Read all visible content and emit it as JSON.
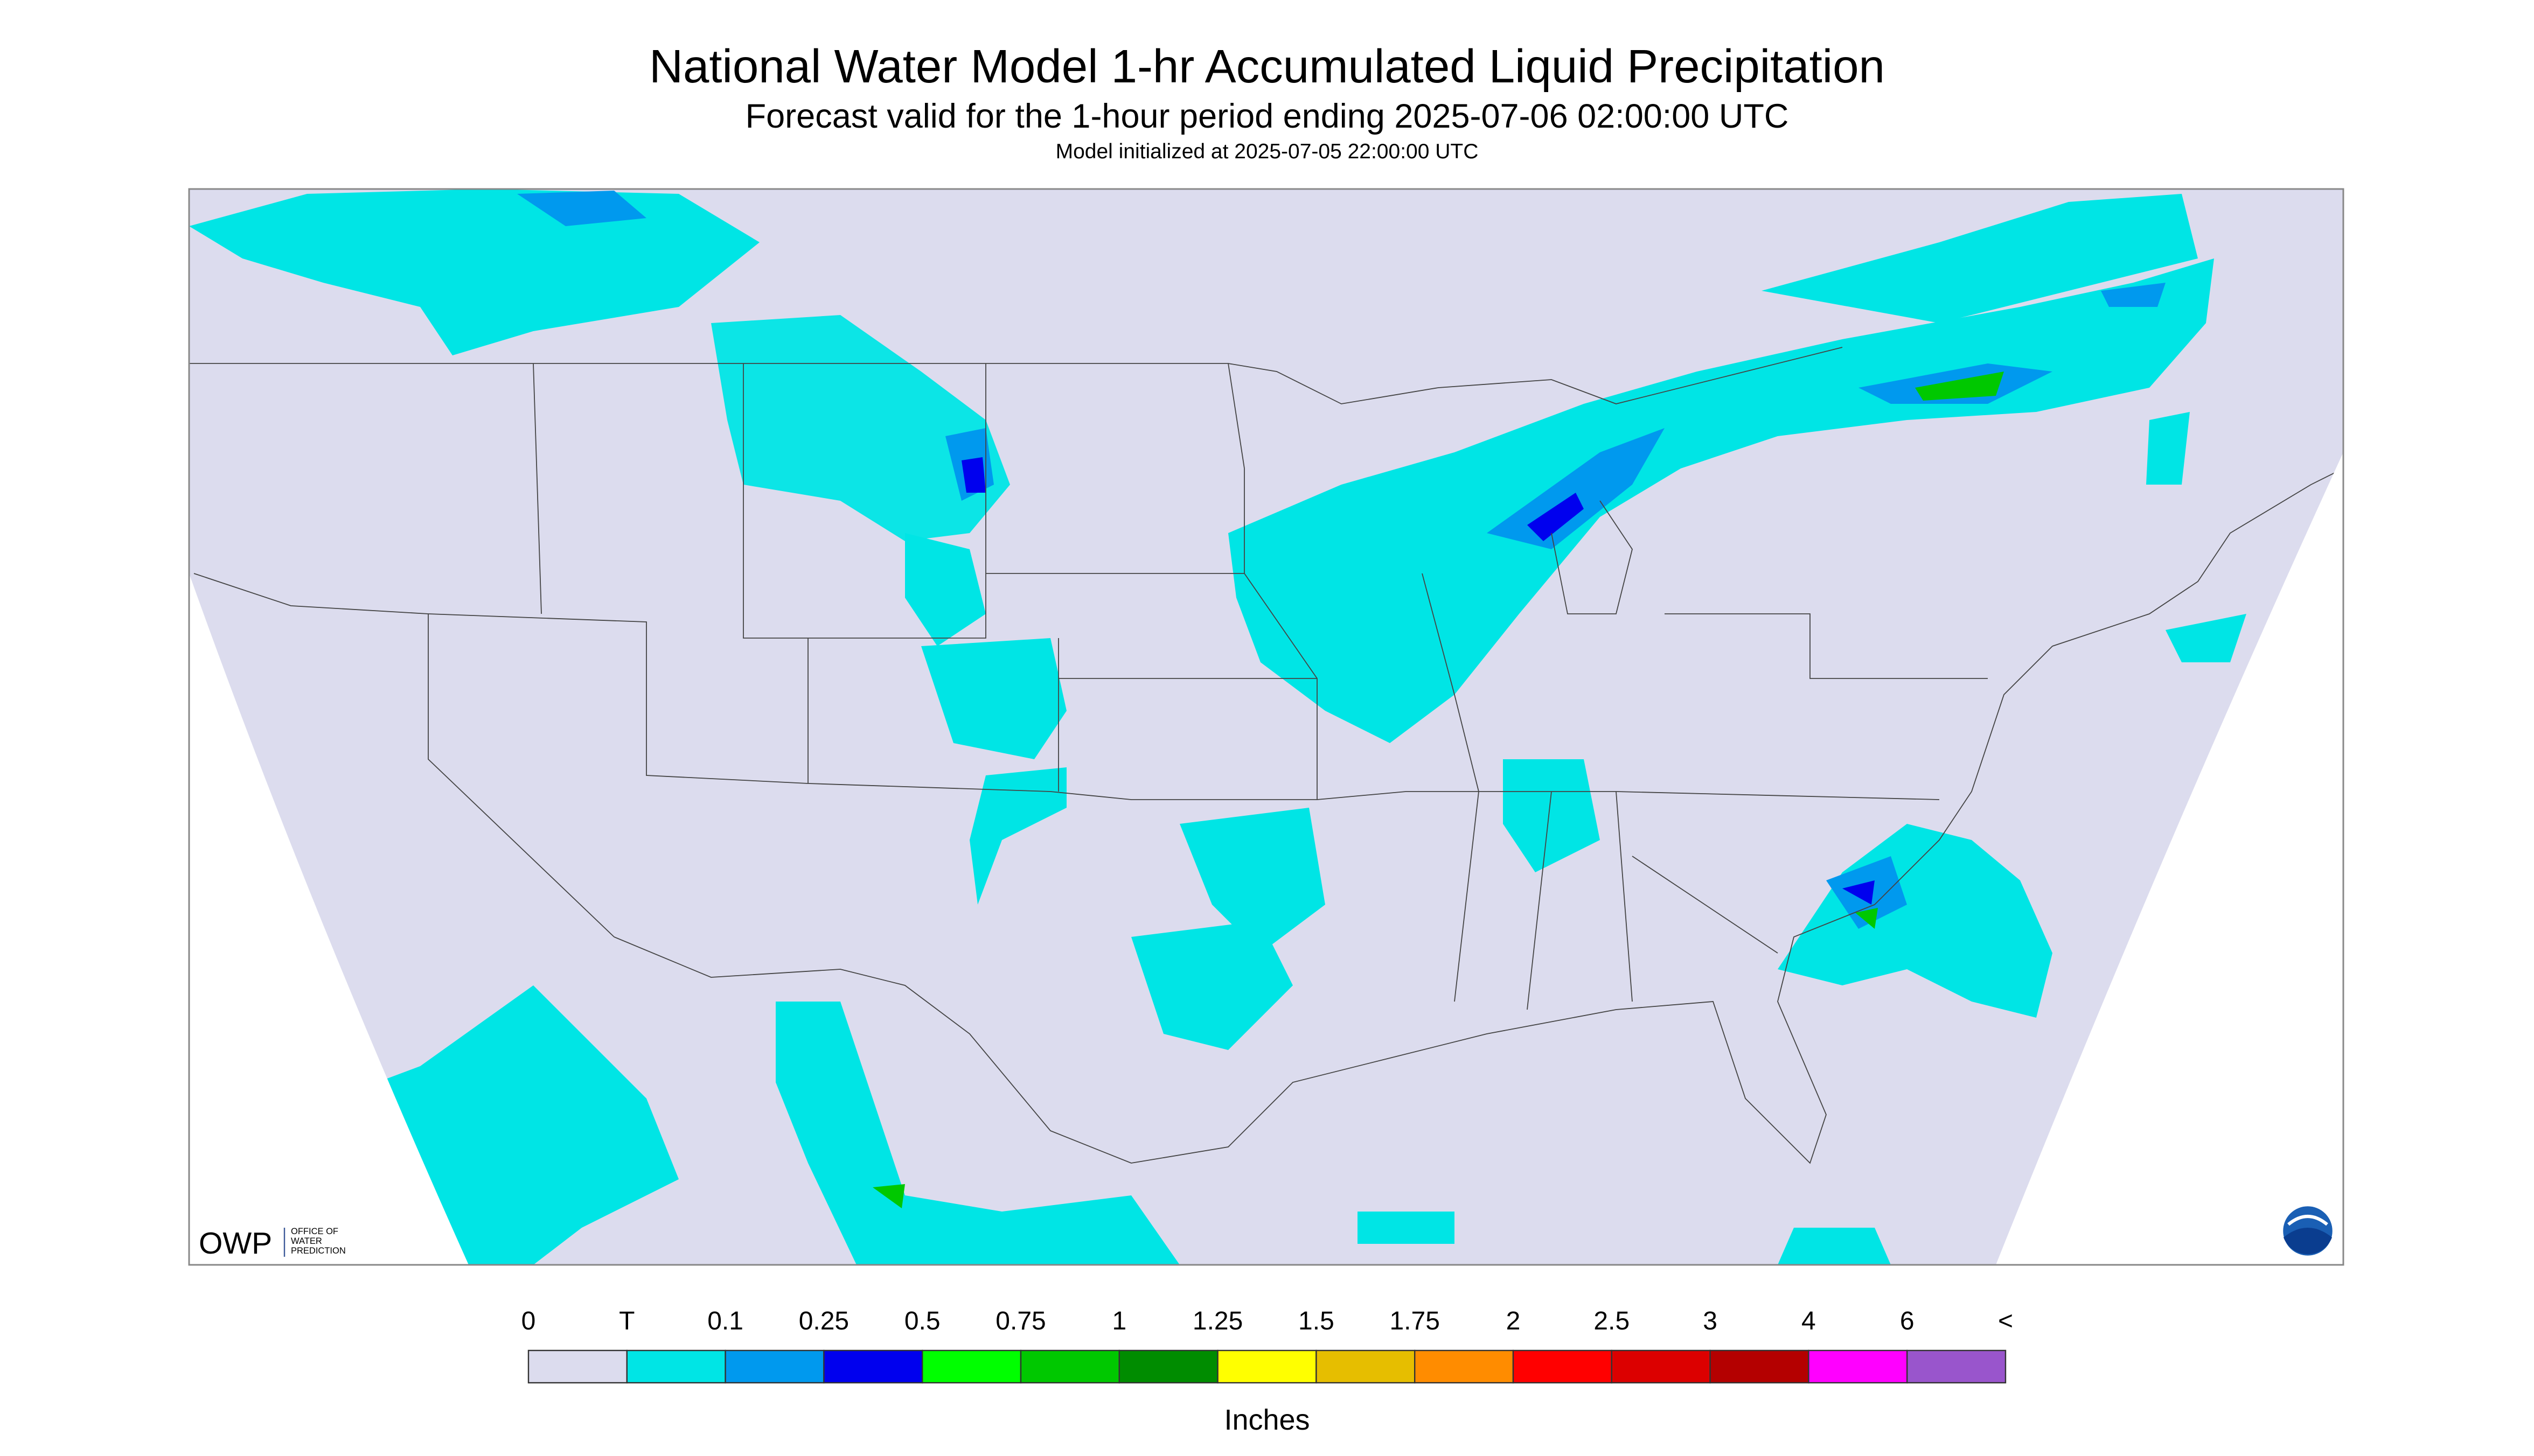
{
  "header": {
    "title": "National Water Model 1-hr Accumulated Liquid Precipitation",
    "subtitle": "Forecast valid for the 1-hour period ending 2025-07-06 02:00:00 UTC",
    "init": "Model initialized at 2025-07-05 22:00:00 UTC"
  },
  "logo": {
    "owp": "OWP",
    "office": [
      "OFFICE OF",
      "WATER",
      "PREDICTION"
    ]
  },
  "legend": {
    "labels": [
      "0",
      "T",
      "0.1",
      "0.25",
      "0.5",
      "0.75",
      "1",
      "1.25",
      "1.5",
      "1.75",
      "2",
      "2.5",
      "3",
      "4",
      "6",
      "<"
    ],
    "colors": [
      "#dcdcee",
      "#00e5e5",
      "#0099ee",
      "#0000ee",
      "#00ff00",
      "#00c800",
      "#008c00",
      "#ffff00",
      "#e6be00",
      "#ff8c00",
      "#ff0000",
      "#dc0000",
      "#b40000",
      "#ff00ff",
      "#9955cc"
    ],
    "unit": "Inches"
  }
}
